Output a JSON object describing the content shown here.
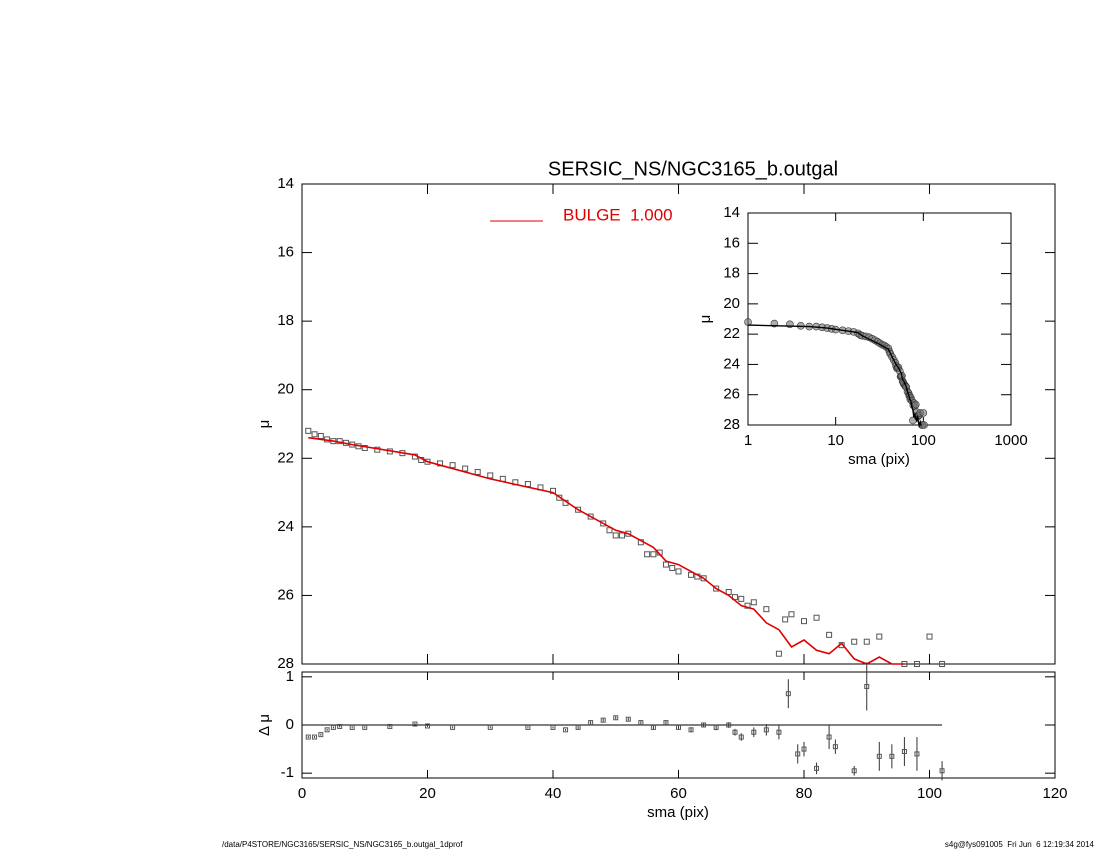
{
  "footer_left": "/data/P4STORE/NGC3165/SERSIC_NS/NGC3165_b.outgal_1dprof",
  "footer_right": "s4g@fys091005  Fri Jun  6 12:19:34 2014",
  "chart_data": [
    {
      "type": "scatter",
      "title": "SERSIC_NS/NGC3165_b.outgal",
      "ylabel": "μ",
      "xlim": [
        0,
        120
      ],
      "ylim": [
        14,
        28
      ],
      "y_reversed": true,
      "yticks": [
        14,
        16,
        18,
        20,
        22,
        24,
        26,
        28
      ],
      "series": [
        {
          "color": "#555555",
          "marker": "square",
          "x": [
            1,
            2,
            3,
            4,
            5,
            6,
            7,
            8,
            9,
            10,
            12,
            14,
            16,
            18,
            19,
            20,
            22,
            24,
            26,
            28,
            30,
            32,
            34,
            36,
            38,
            40,
            41,
            42,
            44,
            46,
            48,
            49,
            50,
            51,
            52,
            54,
            55,
            56,
            57,
            58,
            59,
            60,
            62,
            63,
            64,
            66,
            68,
            69,
            70,
            71,
            72,
            74,
            76,
            77,
            78,
            80,
            82,
            84,
            86,
            88,
            90,
            92,
            96,
            98,
            100,
            102
          ],
          "values": [
            21.2,
            21.3,
            21.35,
            21.45,
            21.5,
            21.5,
            21.55,
            21.6,
            21.65,
            21.7,
            21.75,
            21.8,
            21.85,
            21.95,
            22.05,
            22.1,
            22.15,
            22.2,
            22.3,
            22.4,
            22.5,
            22.6,
            22.7,
            22.75,
            22.85,
            22.95,
            23.15,
            23.3,
            23.5,
            23.7,
            23.9,
            24.1,
            24.25,
            24.25,
            24.2,
            24.45,
            24.8,
            24.8,
            24.75,
            25.1,
            25.2,
            25.3,
            25.4,
            25.45,
            25.5,
            25.8,
            25.9,
            26.05,
            26.1,
            26.3,
            26.2,
            26.4,
            27.7,
            26.7,
            26.55,
            26.75,
            26.65,
            27.15,
            27.45,
            27.35,
            27.35,
            27.2,
            28.0,
            28.0,
            27.2,
            28.0
          ]
        },
        {
          "name": "BULGE  1.000",
          "color": "#e00000",
          "marker": "line",
          "x": [
            1,
            5,
            8,
            18,
            20,
            30,
            40,
            44,
            50,
            52,
            56,
            58,
            60,
            62,
            64,
            66,
            68,
            70,
            72,
            74,
            76,
            78,
            80,
            82,
            84,
            86,
            88,
            90,
            92,
            94,
            96
          ],
          "values": [
            21.4,
            21.5,
            21.6,
            21.9,
            22.1,
            22.6,
            23.0,
            23.5,
            24.1,
            24.2,
            24.6,
            25.0,
            25.1,
            25.3,
            25.5,
            25.8,
            26.0,
            26.3,
            26.4,
            26.8,
            27.0,
            27.5,
            27.3,
            27.6,
            27.7,
            27.4,
            27.85,
            28.0,
            27.8,
            28.0,
            28.0
          ]
        }
      ]
    },
    {
      "type": "residual",
      "xlabel": "sma (pix)",
      "ylabel": "Δ μ",
      "xlim": [
        0,
        120
      ],
      "ylim": [
        -1.1,
        1.1
      ],
      "xticks": [
        0,
        20,
        40,
        60,
        80,
        100,
        120
      ],
      "yticks": [
        -1,
        0,
        1
      ],
      "hline": {
        "y": 0,
        "x": [
          0,
          102
        ]
      },
      "series": [
        {
          "color": "#555555",
          "x": [
            1,
            2,
            3,
            4,
            5,
            6,
            8,
            10,
            14,
            18,
            20,
            24,
            30,
            36,
            40,
            42,
            44,
            46,
            48,
            50,
            52,
            54,
            56,
            58,
            60,
            62,
            64,
            66,
            68,
            69,
            70,
            72,
            74,
            76,
            77.5,
            79,
            80,
            82,
            84,
            85,
            88,
            90,
            92,
            94,
            96,
            98,
            102
          ],
          "values": [
            -0.25,
            -0.25,
            -0.2,
            -0.1,
            -0.05,
            -0.03,
            -0.05,
            -0.05,
            -0.03,
            0.02,
            -0.02,
            -0.05,
            -0.05,
            -0.05,
            -0.05,
            -0.1,
            -0.05,
            0.05,
            0.1,
            0.15,
            0.12,
            0.05,
            -0.05,
            0.05,
            -0.05,
            -0.1,
            0.0,
            -0.05,
            0.0,
            -0.15,
            -0.25,
            -0.15,
            -0.1,
            -0.15,
            0.65,
            -0.6,
            -0.5,
            -0.9,
            -0.25,
            -0.45,
            -0.95,
            0.8,
            -0.65,
            -0.65,
            -0.55,
            -0.6,
            -0.95
          ],
          "errors": [
            0.02,
            0.02,
            0.02,
            0.02,
            0.02,
            0.02,
            0.02,
            0.02,
            0.02,
            0.02,
            0.02,
            0.02,
            0.02,
            0.02,
            0.02,
            0.02,
            0.03,
            0.03,
            0.03,
            0.03,
            0.03,
            0.03,
            0.04,
            0.04,
            0.04,
            0.05,
            0.05,
            0.06,
            0.06,
            0.07,
            0.08,
            0.1,
            0.12,
            0.15,
            0.3,
            0.2,
            0.15,
            0.12,
            0.25,
            0.15,
            0.1,
            0.5,
            0.3,
            0.25,
            0.3,
            0.35,
            0.2
          ]
        }
      ]
    },
    {
      "type": "inset",
      "xlabel": "sma (pix)",
      "ylabel": "μ",
      "log_x": true,
      "xlim": [
        1,
        1000
      ],
      "ylim": [
        14,
        28
      ],
      "y_reversed": true,
      "xticks": [
        1,
        10,
        100,
        1000
      ],
      "yticks": [
        14,
        16,
        18,
        20,
        22,
        24,
        26,
        28
      ],
      "marker_color": "#777777",
      "line_color": "#000000"
    }
  ]
}
